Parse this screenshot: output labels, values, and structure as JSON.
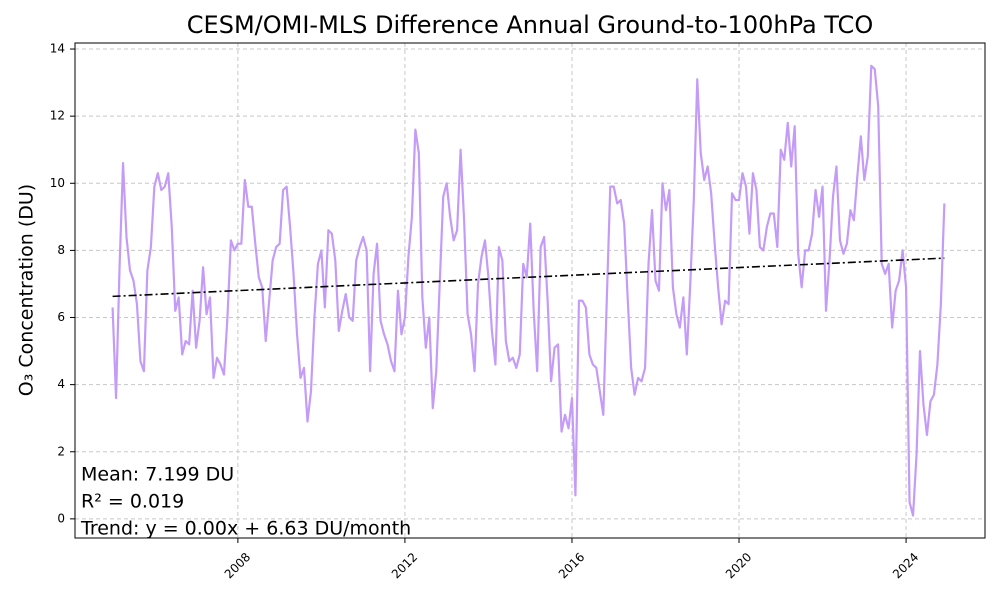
{
  "chart_data": {
    "type": "line",
    "title": "CESM/OMI-MLS Difference Annual Ground-to-100hPa TCO",
    "y_label": "O₃ Concentration (DU)",
    "annotations": [
      "Mean: 7.199 DU",
      "R² = 0.019",
      "Trend: y = 0.00x + 6.63 DU/month"
    ],
    "xlim": [
      2004.1,
      2025.89
    ],
    "ylim": [
      -0.57,
      14.18
    ],
    "xticks": [
      2008,
      2012,
      2016,
      2020,
      2024
    ],
    "yticks": [
      0,
      2,
      4,
      6,
      8,
      10,
      12,
      14
    ],
    "grid": true,
    "x": [
      2005.0,
      2005.083,
      2005.167,
      2005.25,
      2005.333,
      2005.417,
      2005.5,
      2005.583,
      2005.667,
      2005.75,
      2005.833,
      2005.917,
      2006.0,
      2006.083,
      2006.167,
      2006.25,
      2006.333,
      2006.417,
      2006.5,
      2006.583,
      2006.667,
      2006.75,
      2006.833,
      2006.917,
      2007.0,
      2007.083,
      2007.167,
      2007.25,
      2007.333,
      2007.417,
      2007.5,
      2007.583,
      2007.667,
      2007.75,
      2007.833,
      2007.917,
      2008.0,
      2008.083,
      2008.167,
      2008.25,
      2008.333,
      2008.417,
      2008.5,
      2008.583,
      2008.667,
      2008.75,
      2008.833,
      2008.917,
      2009.0,
      2009.083,
      2009.167,
      2009.25,
      2009.333,
      2009.417,
      2009.5,
      2009.583,
      2009.667,
      2009.75,
      2009.833,
      2009.917,
      2010.0,
      2010.083,
      2010.167,
      2010.25,
      2010.333,
      2010.417,
      2010.5,
      2010.583,
      2010.667,
      2010.75,
      2010.833,
      2010.917,
      2011.0,
      2011.083,
      2011.167,
      2011.25,
      2011.333,
      2011.417,
      2011.5,
      2011.583,
      2011.667,
      2011.75,
      2011.833,
      2011.917,
      2012.0,
      2012.083,
      2012.167,
      2012.25,
      2012.333,
      2012.417,
      2012.5,
      2012.583,
      2012.667,
      2012.75,
      2012.833,
      2012.917,
      2013.0,
      2013.083,
      2013.167,
      2013.25,
      2013.333,
      2013.417,
      2013.5,
      2013.583,
      2013.667,
      2013.75,
      2013.833,
      2013.917,
      2014.0,
      2014.083,
      2014.167,
      2014.25,
      2014.333,
      2014.417,
      2014.5,
      2014.583,
      2014.667,
      2014.75,
      2014.833,
      2014.917,
      2015.0,
      2015.083,
      2015.167,
      2015.25,
      2015.333,
      2015.417,
      2015.5,
      2015.583,
      2015.667,
      2015.75,
      2015.833,
      2015.917,
      2016.0,
      2016.083,
      2016.167,
      2016.25,
      2016.333,
      2016.417,
      2016.5,
      2016.583,
      2016.667,
      2016.75,
      2016.833,
      2016.917,
      2017.0,
      2017.083,
      2017.167,
      2017.25,
      2017.333,
      2017.417,
      2017.5,
      2017.583,
      2017.667,
      2017.75,
      2017.833,
      2017.917,
      2018.0,
      2018.083,
      2018.167,
      2018.25,
      2018.333,
      2018.417,
      2018.5,
      2018.583,
      2018.667,
      2018.75,
      2018.833,
      2018.917,
      2019.0,
      2019.083,
      2019.167,
      2019.25,
      2019.333,
      2019.417,
      2019.5,
      2019.583,
      2019.667,
      2019.75,
      2019.833,
      2019.917,
      2020.0,
      2020.083,
      2020.167,
      2020.25,
      2020.333,
      2020.417,
      2020.5,
      2020.583,
      2020.667,
      2020.75,
      2020.833,
      2020.917,
      2021.0,
      2021.083,
      2021.167,
      2021.25,
      2021.333,
      2021.417,
      2021.5,
      2021.583,
      2021.667,
      2021.75,
      2021.833,
      2021.917,
      2022.0,
      2022.083,
      2022.167,
      2022.25,
      2022.333,
      2022.417,
      2022.5,
      2022.583,
      2022.667,
      2022.75,
      2022.833,
      2022.917,
      2023.0,
      2023.083,
      2023.167,
      2023.25,
      2023.333,
      2023.417,
      2023.5,
      2023.583,
      2023.667,
      2023.75,
      2023.833,
      2023.917,
      2024.0,
      2024.083,
      2024.167,
      2024.25,
      2024.333,
      2024.417,
      2024.5,
      2024.583,
      2024.667,
      2024.75,
      2024.833,
      2024.917
    ],
    "series": [
      {
        "color": "#c49cf8",
        "values": [
          6.3,
          3.6,
          7.5,
          10.6,
          8.4,
          7.4,
          7.1,
          6.4,
          4.7,
          4.4,
          7.4,
          8.1,
          9.9,
          10.3,
          9.8,
          9.9,
          10.3,
          8.7,
          6.2,
          6.6,
          4.9,
          5.3,
          5.2,
          6.8,
          5.1,
          5.9,
          7.5,
          6.1,
          6.6,
          4.2,
          4.8,
          4.6,
          4.3,
          6.0,
          8.3,
          8.0,
          8.2,
          8.2,
          10.1,
          9.3,
          9.3,
          8.2,
          7.2,
          6.9,
          5.3,
          6.5,
          7.7,
          8.1,
          8.2,
          9.8,
          9.9,
          8.7,
          7.3,
          5.5,
          4.2,
          4.5,
          2.9,
          3.8,
          6.0,
          7.6,
          8.0,
          6.3,
          8.6,
          8.5,
          7.7,
          5.6,
          6.2,
          6.7,
          6.0,
          5.9,
          7.7,
          8.1,
          8.4,
          8.0,
          4.4,
          7.3,
          8.2,
          5.9,
          5.5,
          5.2,
          4.7,
          4.4,
          6.8,
          5.5,
          6.0,
          7.8,
          9.0,
          11.6,
          10.9,
          6.6,
          5.1,
          6.0,
          3.3,
          4.4,
          7.0,
          9.6,
          10.0,
          9.0,
          8.3,
          8.6,
          11.0,
          8.9,
          6.1,
          5.5,
          4.4,
          7.0,
          7.8,
          8.3,
          7.2,
          5.6,
          4.6,
          8.1,
          7.7,
          5.3,
          4.7,
          4.8,
          4.5,
          4.9,
          7.6,
          7.2,
          8.8,
          6.2,
          4.4,
          8.1,
          8.4,
          6.5,
          4.1,
          5.1,
          5.2,
          2.6,
          3.1,
          2.7,
          3.6,
          0.7,
          6.5,
          6.5,
          6.3,
          4.9,
          4.6,
          4.5,
          3.8,
          3.1,
          6.5,
          9.9,
          9.9,
          9.4,
          9.5,
          8.8,
          6.6,
          4.5,
          3.7,
          4.2,
          4.1,
          4.5,
          7.6,
          9.2,
          7.1,
          6.8,
          10.0,
          9.2,
          9.8,
          6.9,
          6.1,
          5.7,
          6.6,
          4.9,
          7.0,
          9.5,
          13.1,
          10.9,
          10.1,
          10.5,
          9.7,
          8.2,
          6.9,
          5.8,
          6.5,
          6.4,
          9.7,
          9.5,
          9.5,
          10.3,
          9.9,
          8.5,
          10.3,
          9.8,
          8.1,
          8.0,
          8.7,
          9.1,
          9.1,
          8.1,
          11.0,
          10.7,
          11.8,
          10.5,
          11.7,
          7.9,
          6.9,
          8.0,
          8.0,
          8.5,
          9.8,
          9.0,
          9.9,
          6.2,
          7.7,
          9.6,
          10.5,
          8.3,
          7.9,
          8.2,
          9.2,
          8.9,
          10.2,
          11.4,
          10.1,
          10.8,
          13.5,
          13.4,
          12.3,
          7.6,
          7.3,
          7.6,
          5.7,
          6.8,
          7.1,
          8.0,
          6.9,
          0.5,
          0.1,
          1.9,
          5.0,
          3.4,
          2.5,
          3.5,
          3.7,
          4.6,
          6.4,
          9.4
        ]
      }
    ],
    "trend_line": {
      "color": "#000000",
      "x": [
        2005.0,
        2024.917
      ],
      "values": [
        6.63,
        7.77
      ]
    }
  }
}
